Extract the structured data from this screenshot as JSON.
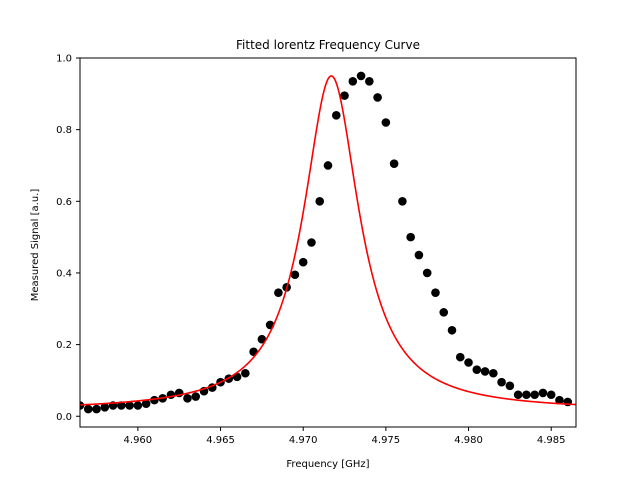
{
  "chart_data": {
    "type": "scatter",
    "title": "Fitted lorentz Frequency Curve",
    "xlabel": "Frequency [GHz]",
    "ylabel": "Measured Signal [a.u.]",
    "xlim": [
      4.9565,
      4.9865
    ],
    "ylim": [
      -0.03,
      1.0
    ],
    "xticks": [
      4.96,
      4.965,
      4.97,
      4.975,
      4.98,
      4.985
    ],
    "xtick_labels": [
      "4.960",
      "4.965",
      "4.970",
      "4.975",
      "4.980",
      "4.985"
    ],
    "yticks": [
      0.0,
      0.2,
      0.4,
      0.6,
      0.8,
      1.0
    ],
    "ytick_labels": [
      "0.0",
      "0.2",
      "0.4",
      "0.6",
      "0.8",
      "1.0"
    ],
    "grid": false,
    "colors": {
      "points": "#000000",
      "fit": "#ff0000"
    },
    "series": [
      {
        "kind": "scatter",
        "x": [
          4.9565,
          4.957,
          4.9575,
          4.958,
          4.9585,
          4.959,
          4.9595,
          4.96,
          4.9605,
          4.961,
          4.9615,
          4.962,
          4.9625,
          4.963,
          4.9635,
          4.964,
          4.9645,
          4.965,
          4.9655,
          4.966,
          4.9665,
          4.967,
          4.9675,
          4.968,
          4.9685,
          4.969,
          4.9695,
          4.97,
          4.9705,
          4.971,
          4.9715,
          4.972,
          4.9725,
          4.973,
          4.9735,
          4.974,
          4.9745,
          4.975,
          4.9755,
          4.976,
          4.9765,
          4.977,
          4.9775,
          4.978,
          4.9785,
          4.979,
          4.9795,
          4.98,
          4.9805,
          4.981,
          4.9815,
          4.982,
          4.9825,
          4.983,
          4.9835,
          4.984,
          4.9845,
          4.985,
          4.9855,
          4.986
        ],
        "y": [
          0.03,
          0.02,
          0.02,
          0.025,
          0.03,
          0.03,
          0.03,
          0.03,
          0.035,
          0.045,
          0.05,
          0.06,
          0.065,
          0.05,
          0.055,
          0.07,
          0.08,
          0.095,
          0.105,
          0.11,
          0.12,
          0.18,
          0.215,
          0.255,
          0.345,
          0.36,
          0.395,
          0.43,
          0.485,
          0.6,
          0.7,
          0.84,
          0.895,
          0.935,
          0.95,
          0.935,
          0.89,
          0.82,
          0.705,
          0.6,
          0.5,
          0.45,
          0.4,
          0.345,
          0.29,
          0.24,
          0.165,
          0.15,
          0.13,
          0.125,
          0.12,
          0.095,
          0.085,
          0.06,
          0.06,
          0.06,
          0.065,
          0.06,
          0.045,
          0.04
        ]
      },
      {
        "kind": "line",
        "model": "lorentzian",
        "center": 4.9717,
        "hwhm": 0.00205,
        "amplitude": 0.935,
        "offset": 0.015,
        "x_range": [
          4.9565,
          4.9865
        ]
      }
    ]
  }
}
